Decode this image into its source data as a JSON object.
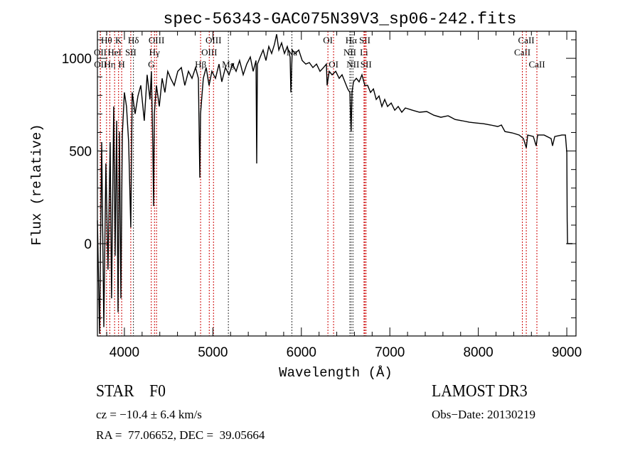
{
  "chart_data": {
    "type": "line",
    "title": "spec-56343-GAC075N39V3_sp06-242.fits",
    "xlabel": "Wavelength (Å)",
    "ylabel": "Flux (relative)",
    "xlim": [
      3695,
      9104
    ],
    "ylim": [
      -498,
      1146
    ],
    "xticks": [
      4000,
      5000,
      6000,
      7000,
      8000,
      9000
    ],
    "xtick_labels": [
      "4000",
      "5000",
      "6000",
      "7000",
      "8000",
      "9000"
    ],
    "yticks": [
      0,
      500,
      1000
    ],
    "ytick_labels": [
      "0",
      "500",
      "1000"
    ],
    "x_minor_step": 200,
    "y_minor_step": 100,
    "grid": false,
    "series": [
      {
        "name": "spectrum",
        "color": "#000000",
        "points": [
          [
            3695,
            126
          ],
          [
            3719,
            -486
          ],
          [
            3743,
            548
          ],
          [
            3767,
            -450
          ],
          [
            3791,
            433
          ],
          [
            3815,
            -140
          ],
          [
            3839,
            548
          ],
          [
            3855,
            -295
          ],
          [
            3879,
            740
          ],
          [
            3895,
            -65
          ],
          [
            3912,
            663
          ],
          [
            3928,
            -370
          ],
          [
            3944,
            605
          ],
          [
            3960,
            -295
          ],
          [
            3976,
            586
          ],
          [
            4000,
            816
          ],
          [
            4024,
            740
          ],
          [
            4048,
            548
          ],
          [
            4072,
            88
          ],
          [
            4088,
            816
          ],
          [
            4121,
            700
          ],
          [
            4153,
            797
          ],
          [
            4185,
            854
          ],
          [
            4225,
            663
          ],
          [
            4257,
            911
          ],
          [
            4289,
            778
          ],
          [
            4305,
            930
          ],
          [
            4322,
            510
          ],
          [
            4330,
            203
          ],
          [
            4338,
            700
          ],
          [
            4362,
            854
          ],
          [
            4394,
            740
          ],
          [
            4426,
            892
          ],
          [
            4458,
            816
          ],
          [
            4490,
            930
          ],
          [
            4523,
            892
          ],
          [
            4563,
            854
          ],
          [
            4603,
            930
          ],
          [
            4643,
            950
          ],
          [
            4683,
            854
          ],
          [
            4724,
            930
          ],
          [
            4764,
            892
          ],
          [
            4804,
            950
          ],
          [
            4836,
            892
          ],
          [
            4852,
            356
          ],
          [
            4860,
            700
          ],
          [
            4892,
            892
          ],
          [
            4924,
            950
          ],
          [
            4957,
            854
          ],
          [
            4989,
            930
          ],
          [
            5029,
            892
          ],
          [
            5069,
            969
          ],
          [
            5101,
            873
          ],
          [
            5142,
            950
          ],
          [
            5182,
            911
          ],
          [
            5222,
            969
          ],
          [
            5262,
            930
          ],
          [
            5302,
            988
          ],
          [
            5343,
            911
          ],
          [
            5383,
            969
          ],
          [
            5423,
            1007
          ],
          [
            5455,
            930
          ],
          [
            5487,
            988
          ],
          [
            5495,
            433
          ],
          [
            5503,
            969
          ],
          [
            5535,
            1007
          ],
          [
            5568,
            1045
          ],
          [
            5600,
            988
          ],
          [
            5632,
            1064
          ],
          [
            5664,
            1026
          ],
          [
            5696,
            1076
          ],
          [
            5720,
            1130
          ],
          [
            5745,
            1045
          ],
          [
            5777,
            1083
          ],
          [
            5809,
            1026
          ],
          [
            5841,
            1064
          ],
          [
            5873,
            1007
          ],
          [
            5881,
            816
          ],
          [
            5897,
            1045
          ],
          [
            5929,
            1026
          ],
          [
            5970,
            1045
          ],
          [
            6010,
            988
          ],
          [
            6050,
            969
          ],
          [
            6090,
            977
          ],
          [
            6130,
            950
          ],
          [
            6171,
            969
          ],
          [
            6211,
            930
          ],
          [
            6251,
            950
          ],
          [
            6283,
            969
          ],
          [
            6291,
            854
          ],
          [
            6315,
            930
          ],
          [
            6347,
            911
          ],
          [
            6388,
            930
          ],
          [
            6428,
            892
          ],
          [
            6460,
            911
          ],
          [
            6492,
            873
          ],
          [
            6524,
            835
          ],
          [
            6548,
            816
          ],
          [
            6563,
            605
          ],
          [
            6572,
            816
          ],
          [
            6589,
            873
          ],
          [
            6621,
            892
          ],
          [
            6653,
            873
          ],
          [
            6685,
            911
          ],
          [
            6717,
            854
          ],
          [
            6749,
            854
          ],
          [
            6781,
            816
          ],
          [
            6814,
            835
          ],
          [
            6846,
            778
          ],
          [
            6878,
            797
          ],
          [
            6910,
            740
          ],
          [
            6942,
            778
          ],
          [
            6974,
            740
          ],
          [
            7015,
            759
          ],
          [
            7055,
            720
          ],
          [
            7095,
            740
          ],
          [
            7135,
            709
          ],
          [
            7175,
            732
          ],
          [
            7256,
            720
          ],
          [
            7336,
            709
          ],
          [
            7417,
            713
          ],
          [
            7497,
            693
          ],
          [
            7577,
            682
          ],
          [
            7658,
            690
          ],
          [
            7738,
            670
          ],
          [
            7818,
            663
          ],
          [
            7899,
            655
          ],
          [
            7979,
            651
          ],
          [
            8060,
            647
          ],
          [
            8140,
            640
          ],
          [
            8220,
            632
          ],
          [
            8261,
            640
          ],
          [
            8301,
            605
          ],
          [
            8381,
            598
          ],
          [
            8462,
            586
          ],
          [
            8510,
            567
          ],
          [
            8542,
            517
          ],
          [
            8558,
            586
          ],
          [
            8622,
            578
          ],
          [
            8654,
            528
          ],
          [
            8671,
            586
          ],
          [
            8743,
            586
          ],
          [
            8823,
            567
          ],
          [
            8839,
            528
          ],
          [
            8864,
            578
          ],
          [
            8944,
            586
          ],
          [
            8984,
            586
          ],
          [
            9000,
            490
          ],
          [
            9004,
            126
          ],
          [
            9008,
            0
          ],
          [
            9064,
            0
          ]
        ]
      }
    ],
    "line_markers": [
      {
        "wavelength": 3727,
        "label": "OII",
        "row": 2,
        "color": "#cc0000"
      },
      {
        "wavelength": 3729,
        "label": "OII",
        "row": 3,
        "color": "#cc0000"
      },
      {
        "wavelength": 3798,
        "label": "Hθ",
        "row": 1,
        "color": "#cc0000"
      },
      {
        "wavelength": 3835,
        "label": "Hη",
        "row": 3,
        "color": "#cc0000"
      },
      {
        "wavelength": 3889,
        "label": "HeI",
        "row": 2,
        "color": "#cc0000"
      },
      {
        "wavelength": 3934,
        "label": "K",
        "row": 1,
        "color": "#cc0000"
      },
      {
        "wavelength": 3969,
        "label": "H",
        "row": 3,
        "color": "#cc0000"
      },
      {
        "wavelength": 4072,
        "label": "SII",
        "row": 2,
        "color": "#cc0000"
      },
      {
        "wavelength": 4102,
        "label": "Hδ",
        "row": 1,
        "color": "#333333"
      },
      {
        "wavelength": 4304,
        "label": "G",
        "row": 3,
        "color": "#cc0000"
      },
      {
        "wavelength": 4340,
        "label": "Hγ",
        "row": 2,
        "color": "#cc0000"
      },
      {
        "wavelength": 4363,
        "label": "OIII",
        "row": 1,
        "color": "#cc0000"
      },
      {
        "wavelength": 4861,
        "label": "Hβ",
        "row": 3,
        "color": "#cc0000"
      },
      {
        "wavelength": 4959,
        "label": "OIII",
        "row": 2,
        "color": "#cc0000"
      },
      {
        "wavelength": 5007,
        "label": "OIII",
        "row": 1,
        "color": "#cc0000"
      },
      {
        "wavelength": 5175,
        "label": "Mg",
        "row": 3,
        "color": "#333333"
      },
      {
        "wavelength": 5893,
        "label": "Na",
        "row": 2,
        "color": "#333333"
      },
      {
        "wavelength": 6300,
        "label": "OI",
        "row": 1,
        "color": "#cc0000"
      },
      {
        "wavelength": 6364,
        "label": "OI",
        "row": 3,
        "color": "#cc0000"
      },
      {
        "wavelength": 6548,
        "label": "NII",
        "row": 2,
        "color": "#333333"
      },
      {
        "wavelength": 6563,
        "label": "Hα",
        "row": 1,
        "color": "#333333"
      },
      {
        "wavelength": 6583,
        "label": "NII",
        "row": 3,
        "color": "#333333"
      },
      {
        "wavelength": 6708,
        "label": "Li",
        "row": 2,
        "color": "#cc0000"
      },
      {
        "wavelength": 6717,
        "label": "SII",
        "row": 1,
        "color": "#cc0000"
      },
      {
        "wavelength": 6731,
        "label": "SII",
        "row": 3,
        "color": "#cc0000"
      },
      {
        "wavelength": 8498,
        "label": "CaII",
        "row": 2,
        "color": "#cc0000"
      },
      {
        "wavelength": 8542,
        "label": "CaII",
        "row": 1,
        "color": "#cc0000"
      },
      {
        "wavelength": 8662,
        "label": "CaII",
        "row": 3,
        "color": "#cc0000"
      }
    ]
  },
  "info": {
    "object_class": "STAR",
    "subclass": "F0",
    "redshift": "cz = −10.4 ± 6.4 km/s",
    "coords": "RA =  77.06652, DEC =  39.05664",
    "survey": "LAMOST DR3",
    "obs_date": "Obs−Date: 20130219"
  }
}
